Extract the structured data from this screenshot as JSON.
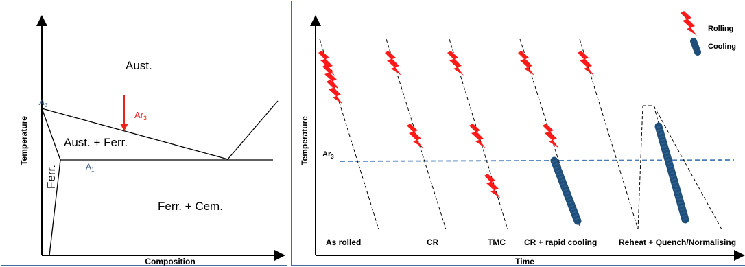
{
  "phase_diagram": {
    "y_axis_label": "Temperature",
    "x_axis_label": "Composition",
    "region_austenite": "Aust.",
    "region_aust_ferr": "Aust. + Ferr.",
    "region_ferr": "Ferr.",
    "region_ferr_cem": "Ferr. + Cem.",
    "line_a3": {
      "letter": "A",
      "sub": "3"
    },
    "line_a1": {
      "letter": "A",
      "sub": "1"
    },
    "ar3_marker": {
      "letter": "Ar",
      "sub": "3"
    },
    "colors": {
      "axis": "#000000",
      "label_blue": "#3b5f8f",
      "ar3_red": "#e8221c"
    }
  },
  "process_diagram": {
    "y_axis_label": "Temperature",
    "x_axis_label": "Time",
    "ar3_label": {
      "letter": "Ar",
      "sub": "3"
    },
    "legend": {
      "rolling": "Rolling",
      "cooling": "Cooling"
    },
    "routes": [
      {
        "label": "As rolled"
      },
      {
        "label": "CR"
      },
      {
        "label": "TMC"
      },
      {
        "label": "CR + rapid cooling"
      },
      {
        "label": "Reheat + Quench/Normalising"
      }
    ],
    "colors": {
      "rolling": "#ff1a1a",
      "cooling": "#1f4e79",
      "ar3_line": "#4a7ebb"
    }
  }
}
